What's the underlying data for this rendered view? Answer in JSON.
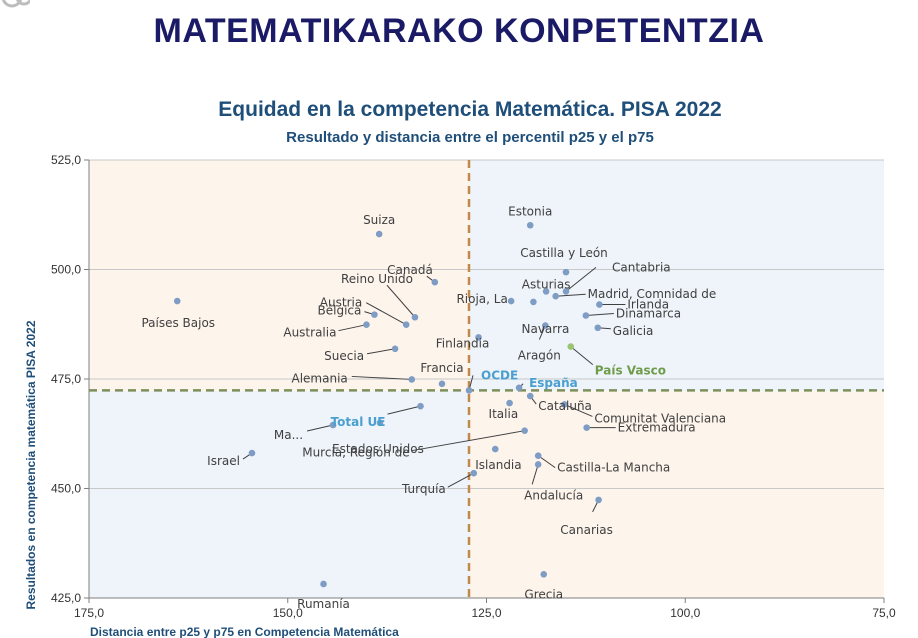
{
  "page": {
    "heading": "MATEMATIKARAKO KONPETENTZIA"
  },
  "chart_data": {
    "type": "scatter",
    "title": "Equidad en la competencia Matemática.  PISA 2022",
    "subtitle": "Resultado y distancia entre el percentil p25 y el p75",
    "xlabel": "Distancia entre p25 y p75 en Competencia Matemática",
    "ylabel": "Resultados en  competencia matemática  PISA 2022",
    "xlim": [
      175,
      75
    ],
    "ylim": [
      425,
      525
    ],
    "x_reversed": true,
    "xticks": [
      "175,0",
      "150,0",
      "125,0",
      "100,0",
      "75,0"
    ],
    "yticks": [
      "525,0",
      "500,0",
      "475,0",
      "450,0",
      "425,0"
    ],
    "reference_lines": {
      "OCDE_x": 127.2,
      "OCDE_y": 472.4
    },
    "colors": {
      "point": "#7f9cc5",
      "highlight": "#9bc475",
      "reference_x": "#c08a4a",
      "reference_y": "#7d8f5a",
      "bg_warm": "#fdf4ec",
      "bg_cool": "#eef4fa",
      "text_oecd": "#4a9fd0",
      "text_highlight": "#6f9c4a"
    },
    "points": [
      {
        "label": "Suiza",
        "x": 138.5,
        "y": 508.1
      },
      {
        "label": "Estonia",
        "x": 119.5,
        "y": 510.1
      },
      {
        "label": "Canadá",
        "x": 131.5,
        "y": 497.1
      },
      {
        "label": "Castilla y León",
        "x": 115.0,
        "y": 499.4
      },
      {
        "label": "Cantabria",
        "x": 115.0,
        "y": 495.0
      },
      {
        "label": "Madrid, Comnidad de",
        "x": 116.3,
        "y": 493.9
      },
      {
        "label": "Irlanda",
        "x": 110.8,
        "y": 492.0
      },
      {
        "label": "Dinamarca",
        "x": 112.5,
        "y": 489.5
      },
      {
        "label": "Galicia",
        "x": 111.0,
        "y": 486.7
      },
      {
        "label": "Reino Unido",
        "x": 134.0,
        "y": 489.1
      },
      {
        "label": "Austria",
        "x": 135.1,
        "y": 487.4
      },
      {
        "label": "Bélgica",
        "x": 139.1,
        "y": 489.7
      },
      {
        "label": "Australia",
        "x": 140.1,
        "y": 487.4
      },
      {
        "label": "Países Bajos",
        "x": 163.9,
        "y": 492.8
      },
      {
        "label": "Asturias",
        "x": 117.5,
        "y": 495.0
      },
      {
        "label": "Rioja, La",
        "x": 121.9,
        "y": 492.8
      },
      {
        "label": "Navarra",
        "x": 119.1,
        "y": 492.6
      },
      {
        "label": "Finlandia",
        "x": 126.0,
        "y": 484.5
      },
      {
        "label": "Aragón",
        "x": 117.6,
        "y": 487.2
      },
      {
        "label": "País Vasco",
        "x": 114.4,
        "y": 482.4,
        "highlight": true
      },
      {
        "label": "Suecia",
        "x": 136.5,
        "y": 481.9
      },
      {
        "label": "Alemania",
        "x": 134.4,
        "y": 474.9
      },
      {
        "label": "Francia",
        "x": 130.6,
        "y": 473.9
      },
      {
        "label": "OCDE",
        "x": 127.2,
        "y": 472.4
      },
      {
        "label": "España",
        "x": 120.9,
        "y": 473.0
      },
      {
        "label": "Total UE",
        "x": 133.3,
        "y": 468.8
      },
      {
        "label": "Comunitat Valenciana",
        "x": 115.2,
        "y": 469.2
      },
      {
        "label": "Italia",
        "x": 122.1,
        "y": 469.5
      },
      {
        "label": "Cataluña",
        "x": 119.5,
        "y": 471.1
      },
      {
        "label": "Extremadura",
        "x": 112.4,
        "y": 463.9
      },
      {
        "label": "Ma...",
        "x": 144.3,
        "y": 464.5
      },
      {
        "label": "Estados Unidos",
        "x": 138.4,
        "y": 465.0
      },
      {
        "label": "Murcia, Región de",
        "x": 120.2,
        "y": 463.2
      },
      {
        "label": "Castilla-La Mancha",
        "x": 118.5,
        "y": 457.5
      },
      {
        "label": "Israel",
        "x": 154.5,
        "y": 458.1
      },
      {
        "label": "Islandia",
        "x": 123.9,
        "y": 459.0
      },
      {
        "label": "Andalucía",
        "x": 118.5,
        "y": 455.5
      },
      {
        "label": "Turquía",
        "x": 126.6,
        "y": 453.5
      },
      {
        "label": "Canarias",
        "x": 110.9,
        "y": 447.4
      },
      {
        "label": "Rumanía",
        "x": 145.5,
        "y": 428.2
      },
      {
        "label": "Grecia",
        "x": 117.8,
        "y": 430.4
      }
    ]
  }
}
